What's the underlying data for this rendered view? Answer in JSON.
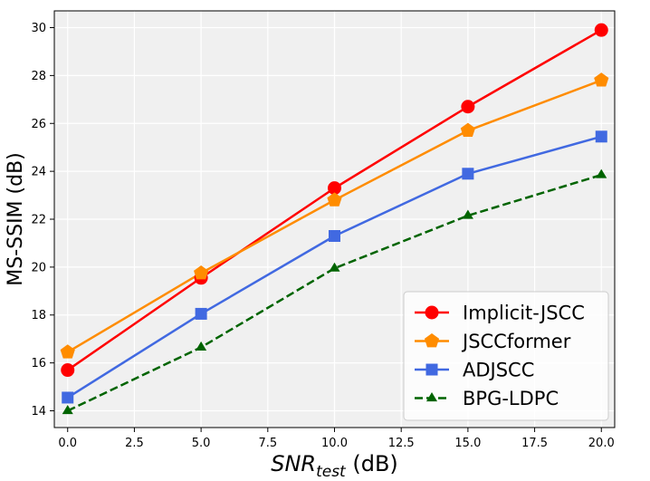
{
  "chart_data": {
    "type": "line",
    "title": "",
    "xlabel": {
      "main": "SNR",
      "subscript": "test",
      "unit": " (dB)"
    },
    "ylabel": "MS-SSIM (dB)",
    "xlim": [
      -0.5,
      20.5
    ],
    "ylim": [
      13.3,
      30.7
    ],
    "xticks": [
      0.0,
      2.5,
      5.0,
      7.5,
      10.0,
      12.5,
      15.0,
      17.5,
      20.0
    ],
    "xtick_labels": [
      "0.0",
      "2.5",
      "5.0",
      "7.5",
      "10.0",
      "12.5",
      "15.0",
      "17.5",
      "20.0"
    ],
    "yticks": [
      14,
      16,
      18,
      20,
      22,
      24,
      26,
      28,
      30
    ],
    "ytick_labels": [
      "14",
      "16",
      "18",
      "20",
      "22",
      "24",
      "26",
      "28",
      "30"
    ],
    "grid": true,
    "legend_position": "lower-right",
    "x": [
      0,
      5,
      10,
      15,
      20
    ],
    "series": [
      {
        "name": "Implicit-JSCC",
        "values": [
          15.7,
          19.55,
          23.3,
          26.7,
          29.9
        ],
        "color": "#ff0000",
        "marker": "circle",
        "linestyle": "solid"
      },
      {
        "name": "JSCCformer",
        "values": [
          16.45,
          19.75,
          22.8,
          25.7,
          27.8
        ],
        "color": "#ff8c00",
        "marker": "pentagon",
        "linestyle": "solid"
      },
      {
        "name": "ADJSCC",
        "values": [
          14.55,
          18.05,
          21.3,
          23.9,
          25.45
        ],
        "color": "#4169e1",
        "marker": "square",
        "linestyle": "solid"
      },
      {
        "name": "BPG-LDPC",
        "values": [
          14.0,
          16.65,
          19.95,
          22.15,
          23.85
        ],
        "color": "#006400",
        "marker": "triangle",
        "linestyle": "dashed"
      }
    ]
  }
}
